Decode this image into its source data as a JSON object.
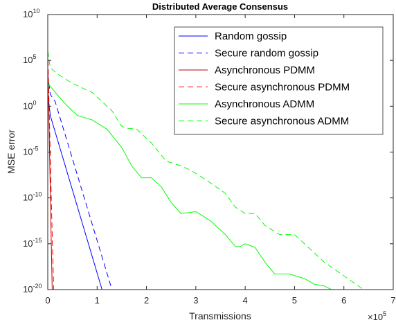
{
  "chart_data": {
    "type": "line",
    "title": "Distributed Average Consensus",
    "xlabel": "Transmissions",
    "ylabel": "MSE error",
    "x_scale_label": "×10",
    "x_scale_exponent": "5",
    "xlim": [
      0,
      700000
    ],
    "ylim": [
      1e-20,
      10000000000.0
    ],
    "y_scale": "log",
    "x_ticks": [
      {
        "value": 0,
        "label": "0"
      },
      {
        "value": 100000,
        "label": "1"
      },
      {
        "value": 200000,
        "label": "2"
      },
      {
        "value": 300000,
        "label": "3"
      },
      {
        "value": 400000,
        "label": "4"
      },
      {
        "value": 500000,
        "label": "5"
      },
      {
        "value": 600000,
        "label": "6"
      },
      {
        "value": 700000,
        "label": "7"
      }
    ],
    "y_ticks": [
      {
        "exp": 10,
        "base": "10",
        "power": "10"
      },
      {
        "exp": 5,
        "base": "10",
        "power": "5"
      },
      {
        "exp": 0,
        "base": "10",
        "power": "0"
      },
      {
        "exp": -5,
        "base": "10",
        "power": "-5"
      },
      {
        "exp": -10,
        "base": "10",
        "power": "-10"
      },
      {
        "exp": -15,
        "base": "10",
        "power": "-15"
      },
      {
        "exp": -20,
        "base": "10",
        "power": "-20"
      }
    ],
    "grid": false,
    "legend_position": "top-right",
    "series": [
      {
        "name": "Random gossip",
        "color": "#0000ff",
        "dash": "solid",
        "x": [
          0,
          5000,
          110000
        ],
        "log10_y": [
          1.5,
          -1,
          -20
        ]
      },
      {
        "name": "Secure random gossip",
        "color": "#0000ff",
        "dash": "dashed",
        "x": [
          0,
          5000,
          15000,
          130000
        ],
        "log10_y": [
          3.5,
          1.3,
          0.5,
          -20
        ]
      },
      {
        "name": "Asynchronous PDMM",
        "color": "#c00000",
        "dash": "solid",
        "x": [
          0,
          3000,
          6000,
          9000
        ],
        "log10_y": [
          4,
          -3,
          -12,
          -20
        ]
      },
      {
        "name": "Secure asynchronous PDMM",
        "color": "#ff0000",
        "dash": "dashed",
        "x": [
          0,
          4000,
          8000,
          12000
        ],
        "log10_y": [
          6,
          -3,
          -12,
          -20
        ]
      },
      {
        "name": "Asynchronous ADMM",
        "color": "#00ff00",
        "dash": "solid",
        "x": [
          0,
          20000,
          40000,
          60000,
          90000,
          120000,
          150000,
          170000,
          190000,
          210000,
          230000,
          250000,
          270000,
          300000,
          330000,
          360000,
          380000,
          390000,
          400000,
          420000,
          440000,
          460000,
          490000,
          520000,
          540000,
          560000,
          575000
        ],
        "log10_y": [
          2.5,
          1.2,
          0,
          -1,
          -1.5,
          -2.5,
          -4.5,
          -6.5,
          -7.8,
          -7.8,
          -8.8,
          -10.5,
          -11.7,
          -11.5,
          -12.5,
          -14,
          -15.3,
          -15.3,
          -15,
          -15.4,
          -17,
          -18.3,
          -18.3,
          -18.8,
          -19.4,
          -19.6,
          -20
        ]
      },
      {
        "name": "Secure asynchronous ADMM",
        "color": "#00ff00",
        "dash": "dashed",
        "x": [
          0,
          5000,
          20000,
          50000,
          90000,
          130000,
          150000,
          160000,
          180000,
          210000,
          240000,
          270000,
          290000,
          320000,
          360000,
          380000,
          400000,
          420000,
          440000,
          470000,
          500000,
          530000,
          560000,
          600000,
          640000
        ],
        "log10_y": [
          6,
          4.2,
          3.5,
          2.5,
          1.5,
          -0.5,
          -2.2,
          -2.4,
          -2.5,
          -4,
          -6,
          -6.5,
          -7,
          -8,
          -9.5,
          -11,
          -11.7,
          -11.7,
          -13,
          -14,
          -14,
          -15.5,
          -17,
          -18.5,
          -20
        ]
      }
    ]
  }
}
